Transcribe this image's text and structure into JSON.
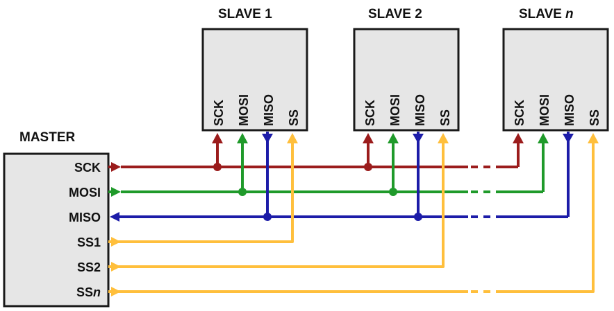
{
  "master": {
    "title": "MASTER",
    "pins": [
      "SCK",
      "MOSI",
      "MISO",
      "SS1",
      "SS2",
      "SS"
    ],
    "pin_italic_suffix": "n"
  },
  "slaves": [
    {
      "title": "SLAVE 1",
      "title_italic_suffix": ""
    },
    {
      "title": "SLAVE 2",
      "title_italic_suffix": ""
    },
    {
      "title": "SLAVE",
      "title_italic_suffix": "n"
    }
  ],
  "slave_pins": [
    "SCK",
    "MOSI",
    "MISO",
    "SS"
  ],
  "colors": {
    "SCK": "#9b1c1c",
    "MOSI": "#1f9a2a",
    "MISO": "#1c1ca8",
    "SS": "#ffbf3c"
  }
}
